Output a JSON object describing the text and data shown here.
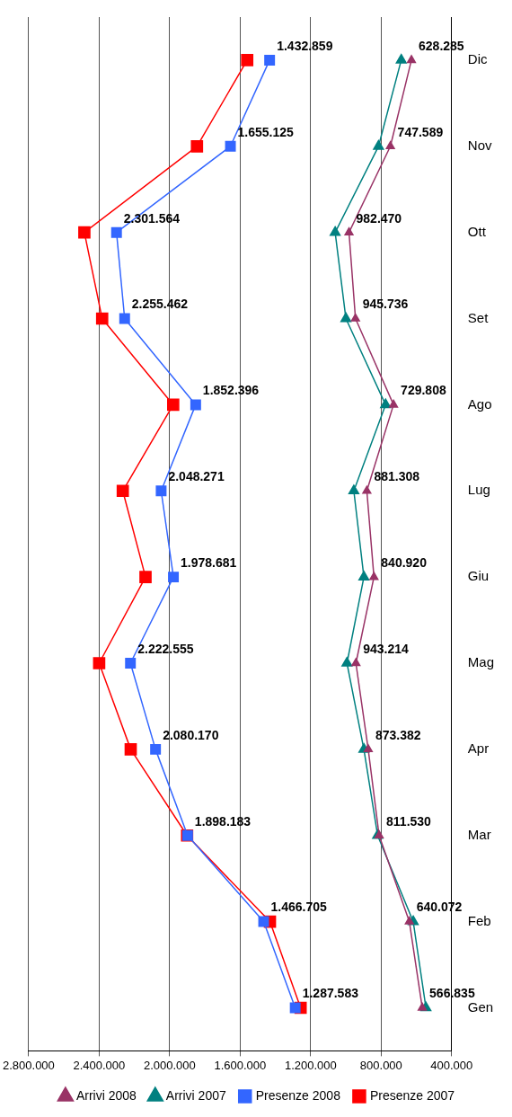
{
  "chart_data": {
    "type": "line",
    "orientation": "horizontal",
    "categories": [
      "Dic",
      "Nov",
      "Ott",
      "Set",
      "Ago",
      "Lug",
      "Giu",
      "Mag",
      "Apr",
      "Mar",
      "Feb",
      "Gen"
    ],
    "xlim": [
      2800000,
      400000
    ],
    "xticks": [
      {
        "value": 2800000,
        "label": "2.800.000"
      },
      {
        "value": 2400000,
        "label": "2.400.000"
      },
      {
        "value": 2000000,
        "label": "2.000.000"
      },
      {
        "value": 1600000,
        "label": "1.600.000"
      },
      {
        "value": 1200000,
        "label": "1.200.000"
      },
      {
        "value": 800000,
        "label": "800.000"
      },
      {
        "value": 400000,
        "label": "400.000"
      }
    ],
    "grid": "x",
    "legend": "bottom",
    "series": [
      {
        "name": "Arrivi 2008",
        "color": "#993366",
        "marker": "triangle",
        "values": [
          628285,
          747589,
          982470,
          945736,
          729808,
          881308,
          840920,
          943214,
          873382,
          811530,
          640072,
          566835
        ],
        "value_labels": [
          "628.285",
          "747.589",
          "982.470",
          "945.736",
          "729.808",
          "881.308",
          "840.920",
          "943.214",
          "873.382",
          "811.530",
          "640.072",
          "566.835"
        ]
      },
      {
        "name": "Arrivi 2007",
        "color": "#008080",
        "marker": "triangle",
        "values": [
          686000,
          815000,
          1061000,
          1000000,
          775000,
          955000,
          898000,
          994000,
          898000,
          820000,
          618000,
          546000
        ]
      },
      {
        "name": "Presenze 2008",
        "color": "#3366ff",
        "marker": "square",
        "values": [
          1432859,
          1655125,
          2301564,
          2255462,
          1852396,
          2048271,
          1978681,
          2222555,
          2080170,
          1898183,
          1466705,
          1287583
        ],
        "value_labels": [
          "1.432.859",
          "1.655.125",
          "2.301.564",
          "2.255.462",
          "1.852.396",
          "2.048.271",
          "1.978.681",
          "2.222.555",
          "2.080.170",
          "1.898.183",
          "1.466.705",
          "1.287.583"
        ]
      },
      {
        "name": "Presenze 2007",
        "color": "#ff0000",
        "marker": "square",
        "values": [
          1560000,
          1845000,
          2484000,
          2383000,
          1980000,
          2266000,
          2137000,
          2400000,
          2221000,
          1901000,
          1431000,
          1257000
        ]
      }
    ]
  }
}
